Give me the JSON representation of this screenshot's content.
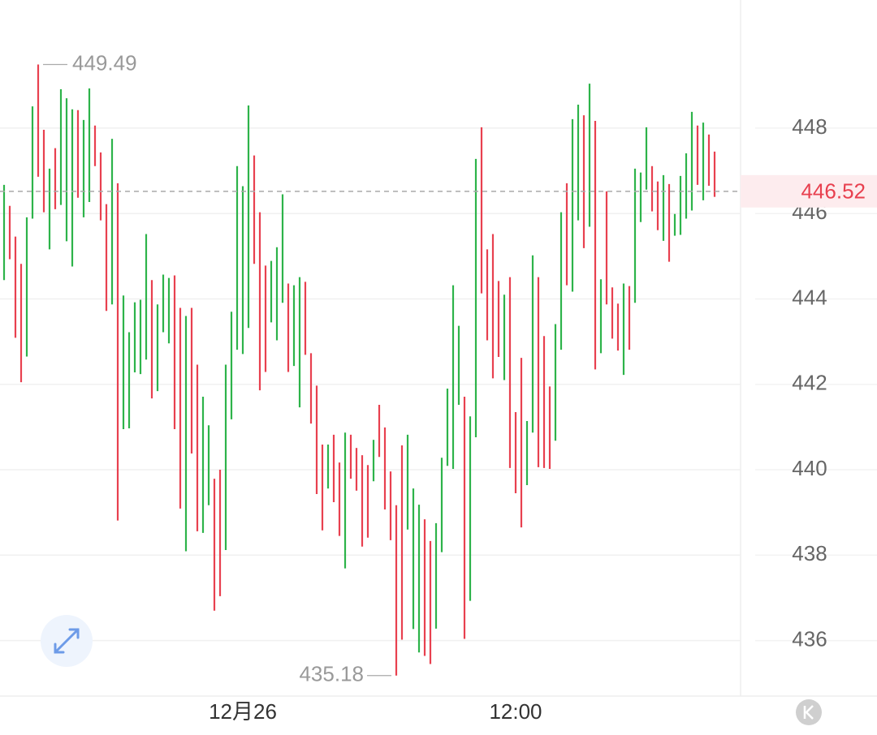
{
  "chart_data": {
    "type": "hilo",
    "categories": [
      null,
      null,
      null,
      null,
      null,
      null,
      null,
      null,
      null,
      null,
      null,
      null,
      null,
      null,
      null,
      null,
      null,
      null,
      null,
      null,
      null,
      null,
      null,
      null,
      null,
      null,
      null,
      null,
      null,
      null,
      null,
      null,
      null,
      null,
      null,
      null,
      null,
      null,
      null,
      null,
      null,
      null,
      "12月26",
      null,
      null,
      null,
      null,
      null,
      null,
      null,
      null,
      null,
      null,
      null,
      null,
      null,
      null,
      null,
      null,
      null,
      null,
      null,
      null,
      null,
      null,
      null,
      null,
      null,
      null,
      null,
      null,
      null,
      null,
      null,
      null,
      null,
      null,
      null,
      null,
      null,
      null,
      null,
      null,
      null,
      null,
      null,
      null,
      null,
      null,
      null,
      "12:00",
      null,
      null,
      null,
      null,
      null,
      null,
      null,
      null,
      null,
      null,
      null,
      null,
      null,
      null,
      null,
      null,
      null,
      null,
      null,
      null,
      null,
      null,
      null,
      null,
      null,
      null,
      null,
      null,
      null,
      null,
      null,
      null,
      null,
      null,
      null
    ],
    "high": [
      446.67,
      446.18,
      445.46,
      444.82,
      445.91,
      448.51,
      449.49,
      447.96,
      447.05,
      447.53,
      448.91,
      448.7,
      448.44,
      448.42,
      448.19,
      448.93,
      448.06,
      447.43,
      446.22,
      447.75,
      446.71,
      444.08,
      443.22,
      443.92,
      443.98,
      445.52,
      444.44,
      443.87,
      444.57,
      444.49,
      444.55,
      443.79,
      443.6,
      443.79,
      442.46,
      441.71,
      441.04,
      439.79,
      440.0,
      442.46,
      443.7,
      447.11,
      446.64,
      448.53,
      447.36,
      446.03,
      444.78,
      444.89,
      445.21,
      446.45,
      444.36,
      444.32,
      444.51,
      444.4,
      442.73,
      441.97,
      440.59,
      440.59,
      440.82,
      440.17,
      440.87,
      440.82,
      440.51,
      440.34,
      440.11,
      440.7,
      441.52,
      440.99,
      439.96,
      439.17,
      440.57,
      440.82,
      439.56,
      439.18,
      438.84,
      438.33,
      438.75,
      440.28,
      441.9,
      444.32,
      443.37,
      441.71,
      441.25,
      447.28,
      448.02,
      445.16,
      445.52,
      444.42,
      444.1,
      444.51,
      441.35,
      442.62,
      441.14,
      445.02,
      444.51,
      443.13,
      441.95,
      443.41,
      446.03,
      446.71,
      448.21,
      448.55,
      448.3,
      449.04,
      448.17,
      444.46,
      446.52,
      444.27,
      443.89,
      444.36,
      444.3,
      447.05,
      446.96,
      448.02,
      447.11,
      446.75,
      446.9,
      446.69,
      445.99,
      446.88,
      447.41,
      448.38,
      448.06,
      448.13,
      447.85,
      447.45
    ],
    "low": [
      444.44,
      444.93,
      443.09,
      442.05,
      442.65,
      445.88,
      446.86,
      446.03,
      445.16,
      446.1,
      446.2,
      445.35,
      444.76,
      446.37,
      445.91,
      446.27,
      447.11,
      445.84,
      443.72,
      443.87,
      438.81,
      440.95,
      440.97,
      442.28,
      442.24,
      442.58,
      441.67,
      441.84,
      443.22,
      442.96,
      440.95,
      439.09,
      438.09,
      440.38,
      438.56,
      438.52,
      439.17,
      436.7,
      437.04,
      438.12,
      441.18,
      442.81,
      442.71,
      443.32,
      444.82,
      441.86,
      442.29,
      443.45,
      443.03,
      443.91,
      442.29,
      442.43,
      441.46,
      442.69,
      441.08,
      439.43,
      438.58,
      439.56,
      439.24,
      438.45,
      437.69,
      439.79,
      439.51,
      438.2,
      438.41,
      439.73,
      440.3,
      439.07,
      438.35,
      435.18,
      436.02,
      438.6,
      436.27,
      435.72,
      435.64,
      435.45,
      436.28,
      438.07,
      440.09,
      440.02,
      441.52,
      436.04,
      436.93,
      440.76,
      444.13,
      443.03,
      442.14,
      442.64,
      442.1,
      440.04,
      439.45,
      438.65,
      439.64,
      440.87,
      440.06,
      440.04,
      440.02,
      440.68,
      442.81,
      444.32,
      444.17,
      445.84,
      445.19,
      445.69,
      442.35,
      442.73,
      443.87,
      443.07,
      442.79,
      442.22,
      442.81,
      443.91,
      445.8,
      446.56,
      446.05,
      445.61,
      445.36,
      444.87,
      445.48,
      445.5,
      445.88,
      446.07,
      446.67,
      446.31,
      446.65,
      446.39
    ],
    "rising": [
      1,
      0,
      0,
      0,
      1,
      1,
      0,
      0,
      1,
      0,
      1,
      1,
      1,
      0,
      1,
      1,
      0,
      0,
      0,
      1,
      0,
      1,
      1,
      1,
      1,
      1,
      0,
      1,
      1,
      1,
      0,
      0,
      1,
      0,
      0,
      1,
      1,
      0,
      0,
      1,
      1,
      1,
      1,
      1,
      0,
      0,
      0,
      1,
      1,
      1,
      0,
      1,
      1,
      0,
      0,
      0,
      0,
      1,
      0,
      0,
      1,
      0,
      0,
      0,
      0,
      1,
      0,
      0,
      0,
      0,
      0,
      1,
      1,
      1,
      0,
      0,
      1,
      1,
      1,
      1,
      1,
      0,
      1,
      1,
      0,
      0,
      0,
      0,
      1,
      0,
      0,
      0,
      1,
      1,
      0,
      0,
      0,
      1,
      1,
      0,
      1,
      1,
      0,
      1,
      0,
      1,
      0,
      0,
      0,
      1,
      0,
      1,
      1,
      1,
      0,
      0,
      1,
      0,
      1,
      1,
      1,
      1,
      0,
      1,
      0,
      0
    ],
    "up_color": "#2db34a",
    "down_color": "#e8404f",
    "high_marker": 449.49,
    "low_marker": 435.18,
    "last_price": 446.52,
    "ylim": [
      434.7,
      451.0
    ],
    "yticks": [
      436,
      438,
      440,
      442,
      444,
      446,
      448
    ],
    "grid": true
  }
}
